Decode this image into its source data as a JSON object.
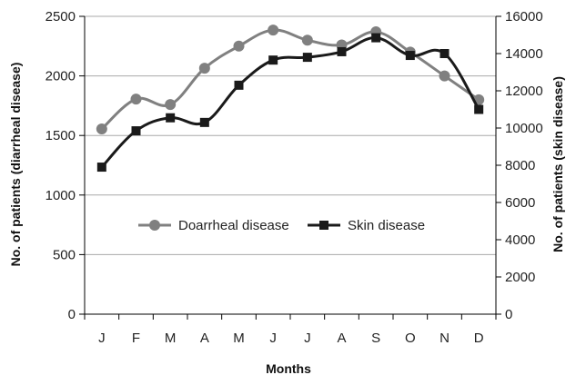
{
  "chart_data": {
    "type": "line",
    "categories": [
      "J",
      "F",
      "M",
      "A",
      "M",
      "J",
      "J",
      "A",
      "S",
      "O",
      "N",
      "D"
    ],
    "series": [
      {
        "name": "Doarrheal disease",
        "axis": "left",
        "color": "#808080",
        "marker": "circle",
        "values": [
          1555,
          1805,
          1760,
          2065,
          2250,
          2385,
          2300,
          2260,
          2370,
          2200,
          2000,
          1800
        ]
      },
      {
        "name": "Skin disease",
        "axis": "right",
        "color": "#1a1a1a",
        "marker": "square",
        "values": [
          7900,
          9850,
          10550,
          10300,
          12300,
          13650,
          13800,
          14100,
          14850,
          13900,
          14000,
          11000
        ]
      }
    ],
    "xlabel": "Months",
    "ylabel_left": "No. of patients (diarrheal disease)",
    "ylabel_right": "No. of patients (skin disease)",
    "ylim_left": [
      0,
      2500
    ],
    "yticks_left": [
      "0",
      "500",
      "1000",
      "1500",
      "2000",
      "2500"
    ],
    "ylim_right": [
      0,
      16000
    ],
    "yticks_right": [
      "0",
      "2000",
      "4000",
      "6000",
      "8000",
      "10000",
      "12000",
      "14000",
      "16000"
    ],
    "grid": "horizontal",
    "legend_position": "center"
  }
}
